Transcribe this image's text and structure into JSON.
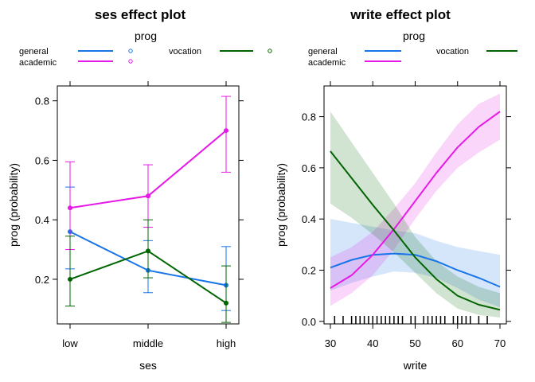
{
  "chart_data": [
    {
      "type": "line",
      "title": "ses effect plot",
      "xlabel": "ses",
      "ylabel": "prog (probability)",
      "categories": [
        "low",
        "middle",
        "high"
      ],
      "ylim": [
        0.05,
        0.85
      ],
      "yticks": [
        0.2,
        0.4,
        0.6,
        0.8
      ],
      "yticklabels": [
        "0.2",
        "0.4",
        "0.6",
        "0.8"
      ],
      "legend": {
        "title": "prog",
        "placement": "top",
        "entries": [
          {
            "label": "general",
            "color": "#1874e8"
          },
          {
            "label": "academic",
            "color": "#e619e6"
          },
          {
            "label": "vocation",
            "color": "#006400"
          }
        ]
      },
      "series": [
        {
          "name": "general",
          "color": "#1874e8",
          "values": [
            0.36,
            0.23,
            0.18
          ],
          "lower": [
            0.235,
            0.155,
            0.095
          ],
          "upper": [
            0.51,
            0.33,
            0.31
          ]
        },
        {
          "name": "academic",
          "color": "#e619e6",
          "values": [
            0.44,
            0.48,
            0.7
          ],
          "lower": [
            0.3,
            0.375,
            0.56
          ],
          "upper": [
            0.595,
            0.585,
            0.815
          ]
        },
        {
          "name": "vocation",
          "color": "#006400",
          "values": [
            0.2,
            0.295,
            0.12
          ],
          "lower": [
            0.11,
            0.205,
            0.055
          ],
          "upper": [
            0.345,
            0.4,
            0.245
          ]
        }
      ]
    },
    {
      "type": "line",
      "title": "write effect plot",
      "xlabel": "write",
      "ylabel": "prog (probability)",
      "xlim": [
        28.5,
        71.5
      ],
      "xticks": [
        30,
        40,
        50,
        60,
        70
      ],
      "xticklabels": [
        "30",
        "40",
        "50",
        "60",
        "70"
      ],
      "ylim": [
        -0.01,
        0.92
      ],
      "yticks": [
        0.0,
        0.2,
        0.4,
        0.6,
        0.8
      ],
      "yticklabels": [
        "0.0",
        "0.2",
        "0.4",
        "0.6",
        "0.8"
      ],
      "legend": {
        "title": "prog",
        "placement": "top",
        "entries": [
          {
            "label": "general",
            "color": "#1874e8"
          },
          {
            "label": "academic",
            "color": "#e619e6"
          },
          {
            "label": "vocation",
            "color": "#006400"
          }
        ]
      },
      "rug": [
        31,
        33,
        35,
        36,
        37,
        38,
        39,
        40,
        41,
        42,
        43,
        44,
        45,
        46,
        47,
        49,
        50,
        52,
        53,
        54,
        55,
        56,
        57,
        59,
        60,
        61,
        62,
        63,
        65,
        67
      ],
      "series": [
        {
          "name": "general",
          "color": "#1874e8",
          "x": [
            30,
            35,
            40,
            45,
            50,
            55,
            60,
            65,
            70
          ],
          "values": [
            0.21,
            0.24,
            0.26,
            0.265,
            0.26,
            0.235,
            0.2,
            0.17,
            0.135
          ],
          "lower": [
            0.12,
            0.15,
            0.175,
            0.195,
            0.19,
            0.17,
            0.13,
            0.085,
            0.055
          ],
          "upper": [
            0.4,
            0.385,
            0.37,
            0.355,
            0.345,
            0.315,
            0.29,
            0.275,
            0.26
          ]
        },
        {
          "name": "academic",
          "color": "#e619e6",
          "x": [
            30,
            35,
            40,
            45,
            50,
            55,
            60,
            65,
            70
          ],
          "values": [
            0.13,
            0.18,
            0.26,
            0.36,
            0.47,
            0.58,
            0.68,
            0.76,
            0.82
          ],
          "lower": [
            0.06,
            0.11,
            0.18,
            0.28,
            0.4,
            0.51,
            0.6,
            0.66,
            0.71
          ],
          "upper": [
            0.25,
            0.29,
            0.35,
            0.44,
            0.54,
            0.66,
            0.77,
            0.85,
            0.89
          ]
        },
        {
          "name": "vocation",
          "color": "#006400",
          "x": [
            30,
            35,
            40,
            45,
            50,
            55,
            60,
            65,
            70
          ],
          "values": [
            0.665,
            0.56,
            0.455,
            0.355,
            0.25,
            0.165,
            0.1,
            0.065,
            0.045
          ],
          "lower": [
            0.46,
            0.405,
            0.34,
            0.27,
            0.19,
            0.11,
            0.05,
            0.025,
            0.015
          ],
          "upper": [
            0.82,
            0.7,
            0.58,
            0.46,
            0.33,
            0.235,
            0.175,
            0.135,
            0.11
          ]
        }
      ]
    }
  ]
}
